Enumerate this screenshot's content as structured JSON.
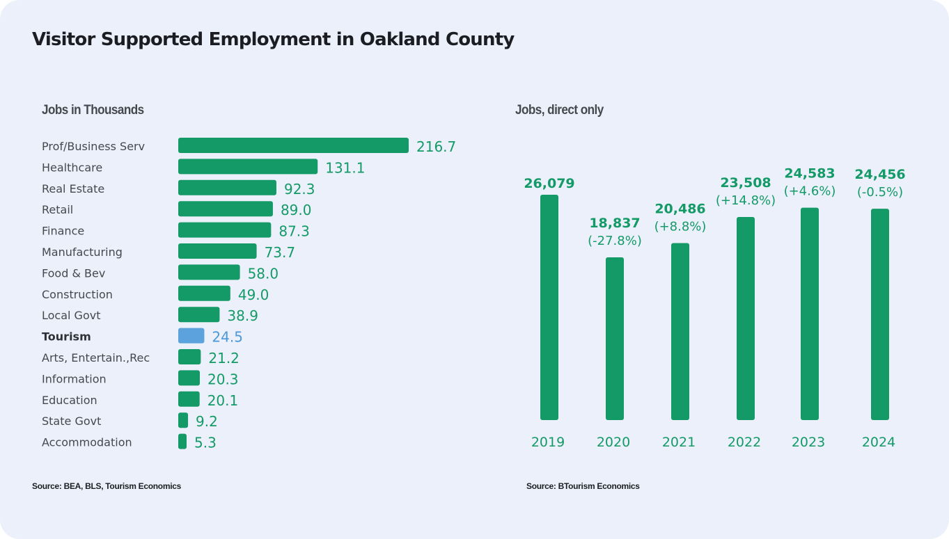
{
  "title": "Visitor Supported Employment in Oakland County",
  "colors": {
    "background": "#ebf0fa",
    "bar": "#149a67",
    "highlight_bar": "#5ca2dd",
    "value_text": "#149a67",
    "highlight_text": "#4d98d8"
  },
  "chart_data": [
    {
      "type": "bar",
      "orientation": "horizontal",
      "title": "Jobs in Thousands",
      "categories": [
        "Prof/Business Serv",
        "Healthcare",
        "Real Estate",
        "Retail",
        "Finance",
        "Manufacturing",
        "Food & Bev",
        "Construction",
        "Local Govt",
        "Tourism",
        "Arts, Entertain.,Rec",
        "Information",
        "Education",
        "State Govt",
        "Accommodation"
      ],
      "values": [
        216.7,
        131.1,
        92.3,
        89.0,
        87.3,
        73.7,
        58.0,
        49.0,
        38.9,
        24.5,
        21.2,
        20.3,
        20.1,
        9.2,
        5.3
      ],
      "value_labels": [
        "216.7",
        "131.1",
        "92.3",
        "89.0",
        "87.3",
        "73.7",
        "58.0",
        "49.0",
        "38.9",
        "24.5",
        "21.2",
        "20.3",
        "20.1",
        "9.2",
        "5.3"
      ],
      "highlight": "Tourism",
      "xlabel": "",
      "ylabel": "",
      "xlim": [
        0,
        216.7
      ],
      "grid": false,
      "legend": "none",
      "source": "Source: BEA, BLS, Tourism Economics"
    },
    {
      "type": "bar",
      "orientation": "vertical",
      "title": "Jobs, direct only",
      "categories": [
        "2019",
        "2020",
        "2021",
        "2022",
        "2023",
        "2024"
      ],
      "values": [
        26079,
        18837,
        20486,
        23508,
        24583,
        24456
      ],
      "value_labels": [
        "26,079",
        "18,837",
        "20,486",
        "23,508",
        "24,583",
        "24,456"
      ],
      "change_labels": [
        "",
        "(-27.8%)",
        "(+8.8%)",
        "(+14.8%)",
        "(+4.6%)",
        "(-0.5%)"
      ],
      "xlabel": "",
      "ylabel": "",
      "grid": false,
      "legend": "none",
      "source": "Source: BTourism Economics"
    }
  ]
}
